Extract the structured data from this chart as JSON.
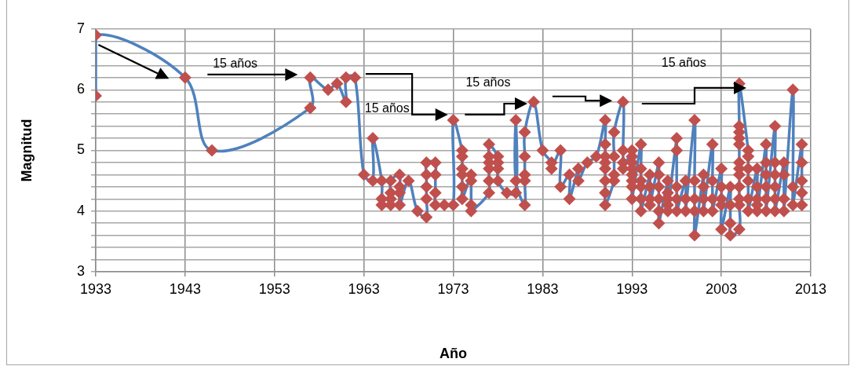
{
  "chart_data": {
    "type": "line",
    "xlabel": "Año",
    "ylabel": "Magnitud",
    "xlim": [
      1933,
      2013
    ],
    "xticks": [
      1933,
      1943,
      1953,
      1963,
      1973,
      1983,
      1993,
      2003,
      2013
    ],
    "ylim": [
      3,
      7
    ],
    "yticks": [
      3,
      {
        "value": 3.2,
        "label": null
      },
      {
        "value": 3.4,
        "label": null
      },
      {
        "value": 3.6,
        "label": null
      },
      {
        "value": 3.8,
        "label": null
      },
      4,
      {
        "value": 4.2,
        "label": null
      },
      {
        "value": 4.4,
        "label": null
      },
      {
        "value": 4.6,
        "label": null
      },
      {
        "value": 4.8,
        "label": null
      },
      5,
      {
        "value": 5.2,
        "label": null
      },
      {
        "value": 5.4,
        "label": null
      },
      {
        "value": 5.6,
        "label": null
      },
      {
        "value": 5.8,
        "label": null
      },
      6,
      {
        "value": 6.2,
        "label": null
      },
      {
        "value": 6.4,
        "label": null
      },
      {
        "value": 6.6,
        "label": null
      },
      {
        "value": 6.8,
        "label": null
      },
      7
    ],
    "grid": true,
    "legend": false,
    "marker": "diamond",
    "line_style": "solid",
    "annotations": [
      "15 años",
      "15 años",
      "15 años",
      "15 años"
    ],
    "series": [
      {
        "color": "#4f81bd",
        "colors": [
          "#c0504d",
          "#c0504d",
          "#c0504d",
          "#c0504d",
          "#c0504d",
          "#c0504d",
          "#c0504d",
          "#c0504d",
          "#c0504d",
          "#c0504d",
          "#c0504d",
          "#c0504d",
          "#c0504d",
          "#c0504d",
          "#c0504d",
          "#c0504d",
          "#c0504d",
          "#c0504d",
          "#c0504d",
          "#c0504d",
          "#c0504d",
          "#c0504d",
          "#c0504d",
          "#c0504d",
          "#c0504d",
          "#c0504d",
          "#c0504d",
          "#c0504d",
          "#c0504d",
          "#c0504d",
          "#c0504d",
          "#c0504d",
          "#c0504d",
          "#c0504d",
          "#c0504d",
          "#c0504d",
          "#c0504d",
          "#c0504d",
          "#c0504d",
          "#c0504d",
          "#c0504d",
          "#c0504d",
          "#c0504d",
          "#c0504d",
          "#c0504d",
          "#c0504d",
          "#c0504d",
          "#c0504d",
          "#c0504d",
          "#c0504d",
          "#c0504d",
          "#c0504d",
          "#c0504d",
          "#c0504d",
          "#c0504d",
          "#c0504d",
          "#c0504d",
          "#c0504d",
          "#c0504d",
          "#c0504d",
          "#c0504d",
          "#c0504d",
          "#c0504d",
          "#c0504d",
          "#c0504d",
          "#c0504d",
          "#c0504d",
          "#c0504d",
          "#c0504d",
          "#c0504d",
          "#c0504d",
          "#c0504d",
          "#c0504d",
          "#c0504d",
          "#c0504d",
          "#c0504d",
          "#c0504d",
          "#c0504d",
          "#c0504d",
          "#c0504d",
          "#c0504d",
          "#c0504d",
          "#c0504d",
          "#c0504d",
          "#c0504d",
          "#c0504d",
          "#c0504d",
          "#c0504d",
          "#c0504d",
          "#c0504d",
          "#c0504d",
          "#c0504d",
          "#c0504d",
          "#c0504d",
          "#c0504d",
          "#c0504d",
          "#c0504d",
          "#c0504d",
          "#c0504d",
          "#c0504d",
          "#c0504d",
          "#c0504d",
          "#c0504d",
          "#c0504d",
          "#c0504d",
          "#c0504d",
          "#c0504d",
          "#c0504d",
          "#c0504d",
          "#c0504d",
          "#c0504d",
          "#c0504d",
          "#c0504d",
          "#c0504d",
          "#c0504d",
          "#c0504d",
          "#c0504d",
          "#c0504d",
          "#c0504d",
          "#c0504d",
          "#c0504d",
          "#c0504d",
          "#c0504d",
          "#c0504d",
          "#c0504d",
          "#c0504d",
          "#c0504d",
          "#c0504d",
          "#c0504d",
          "#c0504d",
          "#c0504d",
          "#c0504d",
          "#c0504d",
          "#c0504d",
          "#c0504d",
          "#c0504d",
          "#c0504d",
          "#c0504d",
          "#c0504d",
          "#c0504d",
          "#c0504d",
          "#c0504d",
          "#c0504d",
          "#c0504d",
          "#c0504d",
          "#c0504d",
          "#c0504d",
          "#c0504d",
          "#c0504d",
          "#c0504d",
          "#c0504d",
          "#c0504d",
          "#c0504d",
          "#c0504d",
          "#c0504d",
          "#c0504d",
          "#c0504d",
          "#c0504d",
          "#c0504d",
          "#c0504d",
          "#c0504d",
          "#c0504d",
          "#c0504d",
          "#c0504d",
          "#c0504d",
          "#c0504d",
          "#c0504d",
          "#c0504d",
          "#c0504d",
          "#c0504d",
          "#c0504d",
          "#c0504d",
          "#c0504d",
          "#c0504d",
          "#c0504d",
          "#c0504d",
          "#c0504d",
          "#c0504d",
          "#c0504d",
          "#c0504d",
          "#c0504d",
          "#c0504d",
          "#c0504d",
          "#c0504d",
          "#c0504d",
          "#c0504d",
          "#c0504d",
          "#c0504d",
          "#c0504d",
          "#c0504d",
          "#c0504d",
          "#c0504d",
          "#c0504d",
          "#c0504d",
          "#c0504d",
          "#c0504d",
          "#c0504d",
          "#c0504d",
          "#c0504d",
          "#c0504d",
          "#c0504d",
          "#c0504d"
        ],
        "x": [
          1933,
          1933,
          1943,
          1946,
          1957,
          1957,
          1959,
          1960,
          1961,
          1961,
          1962,
          1963,
          1964,
          1964,
          1965,
          1965,
          1965,
          1966,
          1966,
          1966,
          1966,
          1967,
          1967,
          1967,
          1967,
          1968,
          1969,
          1970,
          1970,
          1970,
          1970,
          1970,
          1971,
          1971,
          1971,
          1971,
          1972,
          1973,
          1973,
          1974,
          1974,
          1974,
          1974,
          1974,
          1974,
          1975,
          1975,
          1975,
          1975,
          1977,
          1977,
          1977,
          1977,
          1977,
          1977,
          1978,
          1978,
          1978,
          1978,
          1979,
          1980,
          1980,
          1980,
          1981,
          1981,
          1981,
          1981,
          1981,
          1982,
          1983,
          1984,
          1984,
          1985,
          1985,
          1986,
          1986,
          1987,
          1987,
          1988,
          1989,
          1990,
          1990,
          1990,
          1990,
          1990,
          1990,
          1990,
          1990,
          1991,
          1991,
          1991,
          1991,
          1992,
          1992,
          1992,
          1992,
          1993,
          1993,
          1993,
          1993,
          1993,
          1993,
          1993,
          1993,
          1994,
          1994,
          1994,
          1994,
          1994,
          1994,
          1995,
          1995,
          1995,
          1995,
          1996,
          1996,
          1996,
          1996,
          1996,
          1996,
          1997,
          1997,
          1997,
          1997,
          1997,
          1998,
          1998,
          1998,
          1998,
          1998,
          1999,
          1999,
          1999,
          2000,
          2000,
          2000,
          2000,
          2000,
          2001,
          2001,
          2001,
          2001,
          2002,
          2002,
          2002,
          2002,
          2003,
          2003,
          2003,
          2003,
          2003,
          2004,
          2004,
          2004,
          2004,
          2005,
          2005,
          2005,
          2005,
          2005,
          2005,
          2005,
          2005,
          2005,
          2005,
          2005,
          2005,
          2006,
          2006,
          2006,
          2006,
          2006,
          2006,
          2007,
          2007,
          2007,
          2007,
          2007,
          2008,
          2008,
          2008,
          2008,
          2008,
          2008,
          2009,
          2009,
          2009,
          2009,
          2009,
          2009,
          2010,
          2010,
          2010,
          2010,
          2011,
          2011,
          2011,
          2012,
          2012,
          2012,
          2012,
          2012
        ],
        "values": [
          5.9,
          6.9,
          6.2,
          5.0,
          5.7,
          6.2,
          6.0,
          6.1,
          5.8,
          6.2,
          6.2,
          4.6,
          4.5,
          5.2,
          4.5,
          4.2,
          4.1,
          4.1,
          4.2,
          4.3,
          4.5,
          4.6,
          4.4,
          4.3,
          4.1,
          4.5,
          4.0,
          3.9,
          4.2,
          4.4,
          4.6,
          4.8,
          4.8,
          4.6,
          4.3,
          4.1,
          4.1,
          4.1,
          5.5,
          5.0,
          4.9,
          4.7,
          4.6,
          4.4,
          4.2,
          4.6,
          4.5,
          4.1,
          4.0,
          4.3,
          4.5,
          4.7,
          4.8,
          4.9,
          5.1,
          4.9,
          4.8,
          4.7,
          4.5,
          4.3,
          4.3,
          5.5,
          4.5,
          4.1,
          4.5,
          4.6,
          4.9,
          5.3,
          5.8,
          5.0,
          4.8,
          4.7,
          5.0,
          4.4,
          4.6,
          4.2,
          4.7,
          4.5,
          4.8,
          4.9,
          5.5,
          5.1,
          4.9,
          4.8,
          4.7,
          4.5,
          4.3,
          4.1,
          4.5,
          4.6,
          4.9,
          5.3,
          5.8,
          5.0,
          4.8,
          4.7,
          5.0,
          4.9,
          4.8,
          4.7,
          4.6,
          4.5,
          4.4,
          4.2,
          5.1,
          4.7,
          4.5,
          4.4,
          4.2,
          4.0,
          4.6,
          4.4,
          4.2,
          4.1,
          4.8,
          4.6,
          4.4,
          4.2,
          4.0,
          3.8,
          4.5,
          4.3,
          4.2,
          4.1,
          4.0,
          5.2,
          5.0,
          4.4,
          4.2,
          4.0,
          4.5,
          4.2,
          4.0,
          5.5,
          4.5,
          4.2,
          4.0,
          3.6,
          4.6,
          4.4,
          4.2,
          4.0,
          5.1,
          4.5,
          4.2,
          4.0,
          4.7,
          4.4,
          4.2,
          4.1,
          3.7,
          4.4,
          4.1,
          3.8,
          3.6,
          3.7,
          4.1,
          4.2,
          4.4,
          4.6,
          4.7,
          4.8,
          5.1,
          5.2,
          5.3,
          5.4,
          6.1,
          5.0,
          4.9,
          4.7,
          4.5,
          4.2,
          4.0,
          4.7,
          4.4,
          4.2,
          4.1,
          4.0,
          5.1,
          4.8,
          4.6,
          4.4,
          4.2,
          4.0,
          5.4,
          4.8,
          4.6,
          4.4,
          4.2,
          4.0,
          4.8,
          4.6,
          4.2,
          4.0,
          6.0,
          4.4,
          4.1,
          5.1,
          4.8,
          4.5,
          4.3,
          4.1
        ]
      }
    ]
  }
}
